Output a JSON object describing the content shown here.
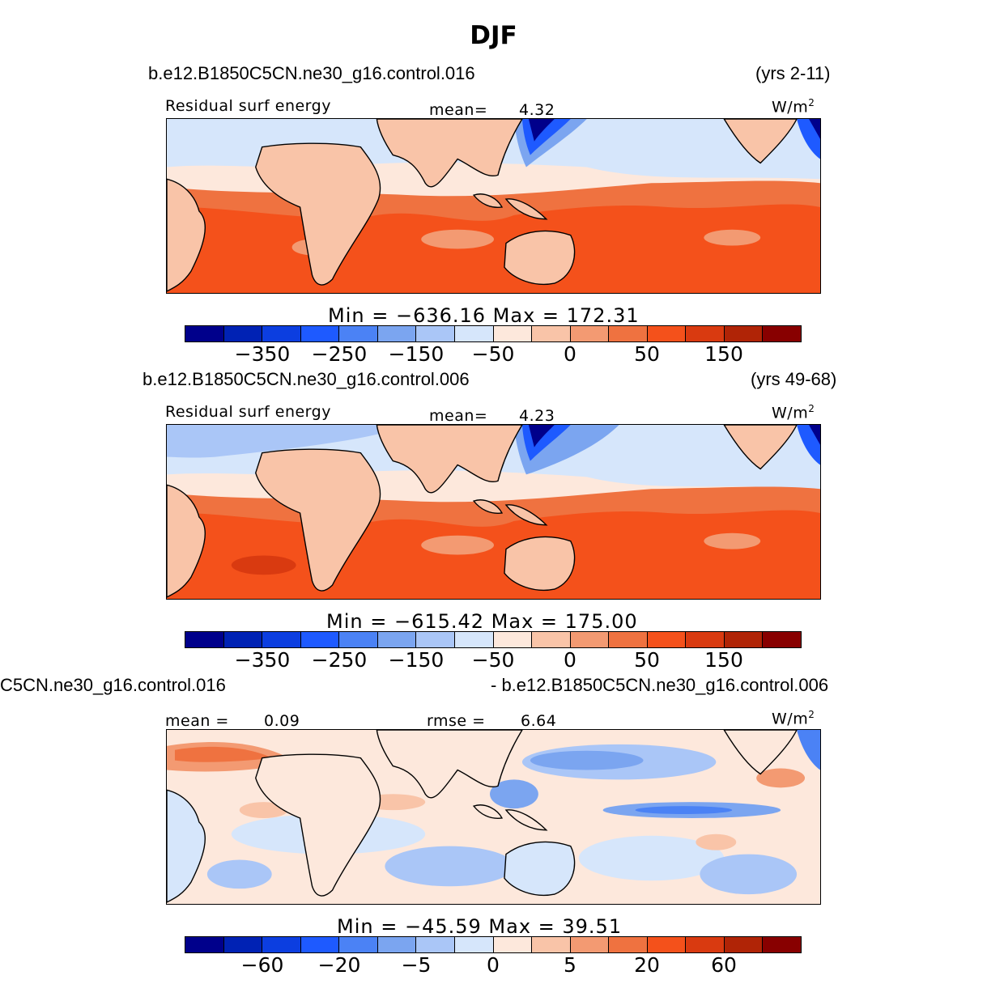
{
  "title": "DJF",
  "colors": {
    "scale": [
      "#00008b",
      "#0022b4",
      "#0c3ee0",
      "#1e5aff",
      "#4b82f5",
      "#7ba5f0",
      "#aac6f7",
      "#d6e6fb",
      "#fde8dc",
      "#f9c4a8",
      "#f39a72",
      "#ef7240",
      "#f4511b",
      "#d93a10",
      "#b02406",
      "#880000"
    ],
    "land_fill": "#f9c4a8",
    "outline": "#000000"
  },
  "panels": [
    {
      "case_name": "b.e12.B1850C5CN.ne30_g16.control.016",
      "years": "(yrs 2-11)",
      "left_label": "Residual surf energy",
      "mean_label": "mean=",
      "mean_value": "4.32",
      "units": "W/m",
      "units_exp": "2",
      "min_max": "Min  =  −636.16  Max  =  172.31",
      "ticks": [
        "−350",
        "−250",
        "−150",
        "−50",
        "0",
        "50",
        "150"
      ]
    },
    {
      "case_name": "b.e12.B1850C5CN.ne30_g16.control.006",
      "years": "(yrs 49-68)",
      "left_label": "Residual surf energy",
      "mean_label": "mean=",
      "mean_value": "4.23",
      "units": "W/m",
      "units_exp": "2",
      "min_max": "Min  =  −615.42  Max  =  175.00",
      "ticks": [
        "−350",
        "−250",
        "−150",
        "−50",
        "0",
        "50",
        "150"
      ]
    },
    {
      "case_left": "C5CN.ne30_g16.control.016",
      "case_right": "- b.e12.B1850C5CN.ne30_g16.control.006",
      "mean_label": "mean =",
      "mean_value": "0.09",
      "rmse_label": "rmse =",
      "rmse_value": "6.64",
      "units": "W/m",
      "units_exp": "2",
      "min_max": "Min  =  −45.59  Max  =    39.51",
      "ticks": [
        "−60",
        "−20",
        "−5",
        "0",
        "5",
        "20",
        "60"
      ]
    }
  ]
}
